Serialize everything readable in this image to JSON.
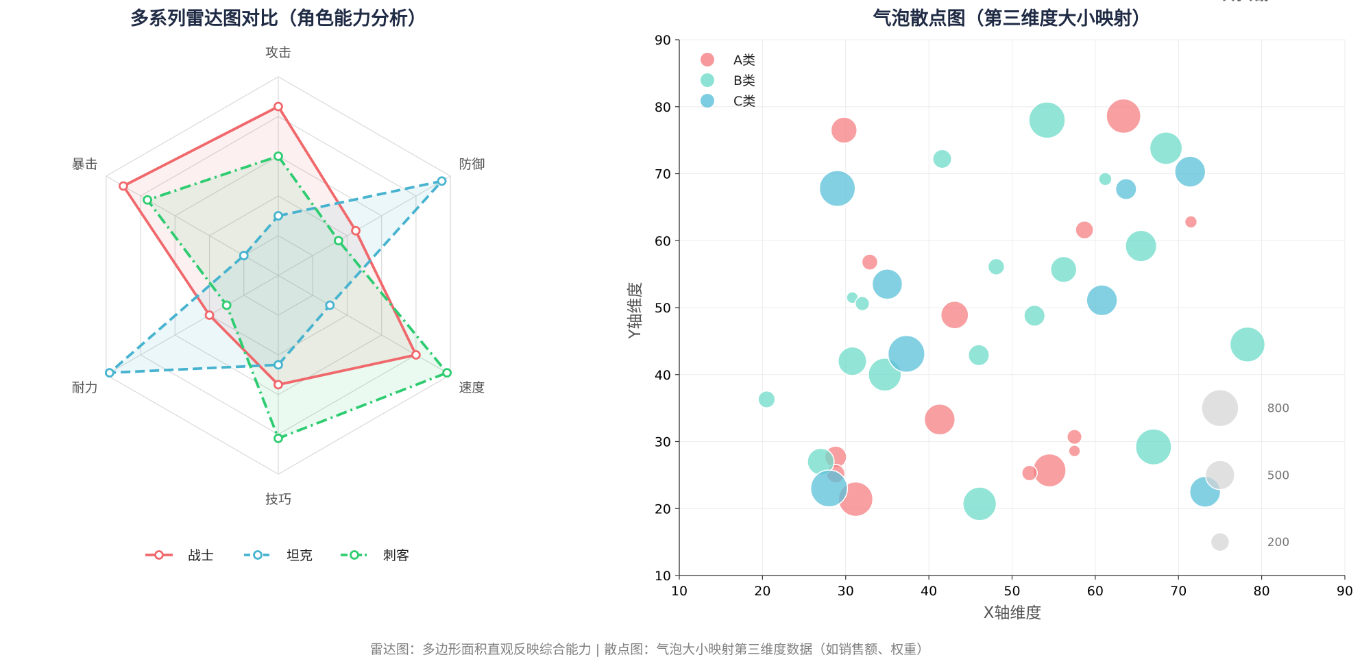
{
  "footer": "雷达图：多边形面积直观反映综合能力 | 散点图：气泡大小映射第三维度数据（如销售额、权重）",
  "chart_data": [
    {
      "type": "radar",
      "title": "多系列雷达图对比（角色能力分析）",
      "axes": [
        "攻击",
        "防御",
        "速度",
        "技巧",
        "耐力",
        "暴击"
      ],
      "rmax": 100,
      "grid_levels": [
        20,
        40,
        60,
        80,
        100
      ],
      "legend_position": "bottom-center",
      "series": [
        {
          "name": "战士",
          "color": "#f0686b",
          "line": "solid",
          "values": [
            85,
            45,
            80,
            55,
            40,
            90
          ]
        },
        {
          "name": "坦克",
          "color": "#47b3cf",
          "line": "dashed",
          "values": [
            30,
            95,
            30,
            45,
            98,
            20
          ]
        },
        {
          "name": "刺客",
          "color": "#2ecc71",
          "line": "dashdot",
          "values": [
            60,
            35,
            98,
            82,
            30,
            76
          ]
        }
      ]
    },
    {
      "type": "scatter",
      "title": "气泡散点图（第三维度大小映射）",
      "xlabel": "X轴维度",
      "ylabel": "Y轴维度",
      "xlim": [
        10,
        90
      ],
      "ylim": [
        10,
        90
      ],
      "xticks": [
        10,
        20,
        30,
        40,
        50,
        60,
        70,
        80,
        90
      ],
      "yticks": [
        10,
        20,
        30,
        40,
        50,
        60,
        70,
        80,
        90
      ],
      "grid": true,
      "legend_position": "top-left",
      "size_legend": {
        "title": "大小映射",
        "sizes": [
          800,
          500,
          200
        ],
        "y": [
          35,
          25,
          15
        ],
        "x": 75
      },
      "series": [
        {
          "name": "A类",
          "color": "#f57f83",
          "points": [
            {
              "x": 29.8,
              "y": 76.5,
              "s": 400
            },
            {
              "x": 63.4,
              "y": 78.6,
              "s": 700
            },
            {
              "x": 58.7,
              "y": 61.6,
              "s": 190
            },
            {
              "x": 71.5,
              "y": 62.8,
              "s": 90
            },
            {
              "x": 32.9,
              "y": 56.8,
              "s": 150
            },
            {
              "x": 43.1,
              "y": 48.9,
              "s": 450
            },
            {
              "x": 41.3,
              "y": 33.3,
              "s": 560
            },
            {
              "x": 57.5,
              "y": 30.7,
              "s": 130
            },
            {
              "x": 57.5,
              "y": 28.6,
              "s": 80
            },
            {
              "x": 54.5,
              "y": 25.7,
              "s": 640
            },
            {
              "x": 52.1,
              "y": 25.3,
              "s": 140
            },
            {
              "x": 28.8,
              "y": 27.7,
              "s": 280
            },
            {
              "x": 28.8,
              "y": 25.2,
              "s": 200
            },
            {
              "x": 31.2,
              "y": 21.4,
              "s": 700
            }
          ]
        },
        {
          "name": "B类",
          "color": "#6edbca",
          "points": [
            {
              "x": 54.2,
              "y": 78.0,
              "s": 780
            },
            {
              "x": 68.5,
              "y": 73.8,
              "s": 620
            },
            {
              "x": 41.6,
              "y": 72.2,
              "s": 210
            },
            {
              "x": 61.2,
              "y": 69.2,
              "s": 100
            },
            {
              "x": 65.5,
              "y": 59.2,
              "s": 580
            },
            {
              "x": 56.2,
              "y": 55.7,
              "s": 400
            },
            {
              "x": 48.1,
              "y": 56.1,
              "s": 160
            },
            {
              "x": 30.8,
              "y": 51.5,
              "s": 80
            },
            {
              "x": 32.0,
              "y": 50.6,
              "s": 120
            },
            {
              "x": 52.7,
              "y": 48.8,
              "s": 260
            },
            {
              "x": 78.3,
              "y": 44.5,
              "s": 720
            },
            {
              "x": 46.0,
              "y": 42.9,
              "s": 260
            },
            {
              "x": 30.8,
              "y": 42.0,
              "s": 480
            },
            {
              "x": 34.7,
              "y": 40.0,
              "s": 640
            },
            {
              "x": 20.5,
              "y": 36.3,
              "s": 170
            },
            {
              "x": 67.0,
              "y": 29.2,
              "s": 760
            },
            {
              "x": 27.0,
              "y": 27.0,
              "s": 420
            },
            {
              "x": 46.1,
              "y": 20.7,
              "s": 660
            }
          ]
        },
        {
          "name": "C类",
          "color": "#5bc0da",
          "points": [
            {
              "x": 29.0,
              "y": 67.8,
              "s": 760
            },
            {
              "x": 71.4,
              "y": 70.3,
              "s": 560
            },
            {
              "x": 63.7,
              "y": 67.7,
              "s": 260
            },
            {
              "x": 35.0,
              "y": 53.5,
              "s": 540
            },
            {
              "x": 60.8,
              "y": 51.1,
              "s": 560
            },
            {
              "x": 37.3,
              "y": 43.1,
              "s": 800
            },
            {
              "x": 73.2,
              "y": 22.5,
              "s": 560
            },
            {
              "x": 28.0,
              "y": 23.0,
              "s": 800
            }
          ]
        }
      ]
    }
  ]
}
